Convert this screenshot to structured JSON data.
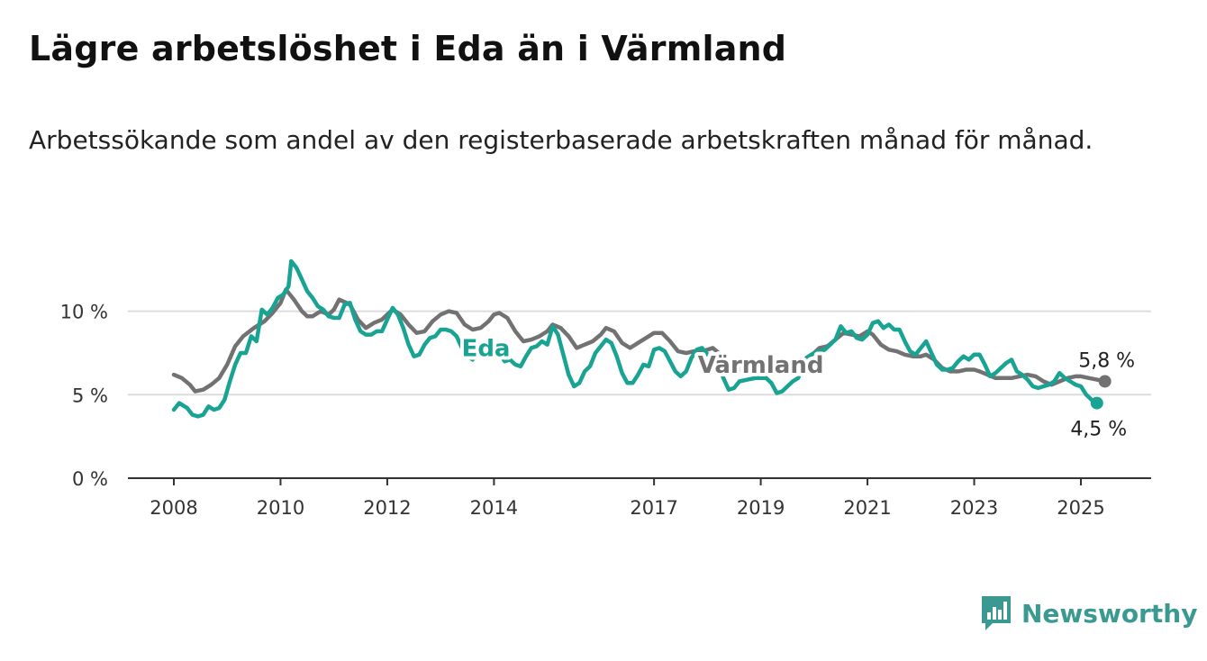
{
  "title": "Lägre arbetslöshet i Eda än i Värmland",
  "subtitle": "Arbetssökande som andel av den registerbaserade arbetskraften månad för månad.",
  "brand": {
    "name": "Newsworthy",
    "color": "#3a9a92",
    "icon": "chart-bars-icon"
  },
  "chart_data": {
    "type": "line",
    "title": "Lägre arbetslöshet i Eda än i Värmland",
    "subtitle": "Arbetssökande som andel av den registerbaserade arbetskraften månad för månad.",
    "x_ticks": [
      "2008",
      "2010",
      "2012",
      "2014",
      "2017",
      "2019",
      "2021",
      "2023",
      "2025"
    ],
    "y_ticks": [
      {
        "value": 0,
        "label": "0 %"
      },
      {
        "value": 5,
        "label": "5 %"
      },
      {
        "value": 10,
        "label": "10 %"
      }
    ],
    "xlim": [
      2007.2,
      2026.3
    ],
    "ylim": [
      0,
      13
    ],
    "grid": "horizontal",
    "legend": "none",
    "series": [
      {
        "name": "Värmland",
        "color": "#727272",
        "end_label": "5,8 %",
        "points": [
          [
            2008.0,
            6.2
          ],
          [
            2008.15,
            6.0
          ],
          [
            2008.3,
            5.6
          ],
          [
            2008.4,
            5.2
          ],
          [
            2008.55,
            5.3
          ],
          [
            2008.7,
            5.6
          ],
          [
            2008.85,
            6.0
          ],
          [
            2009.0,
            6.8
          ],
          [
            2009.15,
            7.9
          ],
          [
            2009.3,
            8.5
          ],
          [
            2009.5,
            9.0
          ],
          [
            2009.7,
            9.4
          ],
          [
            2009.85,
            9.9
          ],
          [
            2010.0,
            10.5
          ],
          [
            2010.1,
            11.3
          ],
          [
            2010.25,
            10.7
          ],
          [
            2010.4,
            10.0
          ],
          [
            2010.5,
            9.7
          ],
          [
            2010.6,
            9.7
          ],
          [
            2010.75,
            10.0
          ],
          [
            2010.9,
            9.8
          ],
          [
            2011.0,
            10.1
          ],
          [
            2011.1,
            10.7
          ],
          [
            2011.3,
            10.4
          ],
          [
            2011.45,
            9.5
          ],
          [
            2011.6,
            9.0
          ],
          [
            2011.75,
            9.3
          ],
          [
            2011.9,
            9.5
          ],
          [
            2012.0,
            9.8
          ],
          [
            2012.1,
            10.1
          ],
          [
            2012.25,
            9.8
          ],
          [
            2012.4,
            9.2
          ],
          [
            2012.55,
            8.7
          ],
          [
            2012.7,
            8.8
          ],
          [
            2012.85,
            9.4
          ],
          [
            2013.0,
            9.8
          ],
          [
            2013.15,
            10.0
          ],
          [
            2013.3,
            9.9
          ],
          [
            2013.45,
            9.2
          ],
          [
            2013.6,
            8.9
          ],
          [
            2013.75,
            9.0
          ],
          [
            2013.9,
            9.4
          ],
          [
            2014.0,
            9.8
          ],
          [
            2014.1,
            9.9
          ],
          [
            2014.25,
            9.6
          ],
          [
            2014.4,
            8.8
          ],
          [
            2014.55,
            8.2
          ],
          [
            2014.7,
            8.3
          ],
          [
            2014.85,
            8.5
          ],
          [
            2015.0,
            8.8
          ],
          [
            2015.1,
            9.2
          ],
          [
            2015.25,
            9.0
          ],
          [
            2015.4,
            8.5
          ],
          [
            2015.55,
            7.8
          ],
          [
            2015.7,
            8.0
          ],
          [
            2015.85,
            8.2
          ],
          [
            2016.0,
            8.6
          ],
          [
            2016.1,
            9.0
          ],
          [
            2016.25,
            8.8
          ],
          [
            2016.4,
            8.1
          ],
          [
            2016.55,
            7.8
          ],
          [
            2016.7,
            8.1
          ],
          [
            2016.85,
            8.4
          ],
          [
            2017.0,
            8.7
          ],
          [
            2017.15,
            8.7
          ],
          [
            2017.3,
            8.2
          ],
          [
            2017.45,
            7.6
          ],
          [
            2017.6,
            7.5
          ],
          [
            2017.75,
            7.6
          ],
          [
            2017.9,
            7.6
          ],
          [
            2018.0,
            7.7
          ],
          [
            2018.1,
            7.8
          ],
          [
            2018.25,
            7.4
          ],
          [
            2018.4,
            6.8
          ],
          [
            2018.55,
            6.5
          ],
          [
            2018.7,
            6.5
          ],
          [
            2018.85,
            6.7
          ],
          [
            2019.0,
            6.9
          ],
          [
            2019.15,
            7.1
          ],
          [
            2019.3,
            6.9
          ],
          [
            2019.45,
            6.6
          ],
          [
            2019.6,
            6.6
          ],
          [
            2019.75,
            6.9
          ],
          [
            2019.9,
            7.3
          ],
          [
            2020.0,
            7.5
          ],
          [
            2020.1,
            7.8
          ],
          [
            2020.25,
            7.9
          ],
          [
            2020.4,
            8.3
          ],
          [
            2020.55,
            8.7
          ],
          [
            2020.7,
            8.6
          ],
          [
            2020.85,
            8.5
          ],
          [
            2021.0,
            8.8
          ],
          [
            2021.1,
            8.6
          ],
          [
            2021.25,
            8.0
          ],
          [
            2021.4,
            7.7
          ],
          [
            2021.55,
            7.6
          ],
          [
            2021.7,
            7.4
          ],
          [
            2021.85,
            7.3
          ],
          [
            2022.0,
            7.3
          ],
          [
            2022.1,
            7.4
          ],
          [
            2022.25,
            7.1
          ],
          [
            2022.4,
            6.6
          ],
          [
            2022.55,
            6.4
          ],
          [
            2022.7,
            6.4
          ],
          [
            2022.85,
            6.5
          ],
          [
            2023.0,
            6.5
          ],
          [
            2023.1,
            6.4
          ],
          [
            2023.25,
            6.2
          ],
          [
            2023.4,
            6.0
          ],
          [
            2023.55,
            6.0
          ],
          [
            2023.7,
            6.0
          ],
          [
            2023.85,
            6.1
          ],
          [
            2024.0,
            6.2
          ],
          [
            2024.15,
            6.1
          ],
          [
            2024.3,
            5.8
          ],
          [
            2024.45,
            5.6
          ],
          [
            2024.6,
            5.8
          ],
          [
            2024.75,
            6.0
          ],
          [
            2024.9,
            6.1
          ],
          [
            2025.0,
            6.1
          ],
          [
            2025.15,
            6.0
          ],
          [
            2025.3,
            5.9
          ],
          [
            2025.45,
            5.8
          ]
        ]
      },
      {
        "name": "Eda",
        "color": "#19a393",
        "end_label": "4,5 %",
        "points": [
          [
            2008.0,
            4.1
          ],
          [
            2008.1,
            4.5
          ],
          [
            2008.25,
            4.2
          ],
          [
            2008.35,
            3.8
          ],
          [
            2008.45,
            3.7
          ],
          [
            2008.55,
            3.8
          ],
          [
            2008.65,
            4.3
          ],
          [
            2008.75,
            4.1
          ],
          [
            2008.85,
            4.2
          ],
          [
            2008.95,
            4.7
          ],
          [
            2009.05,
            5.8
          ],
          [
            2009.15,
            6.8
          ],
          [
            2009.25,
            7.5
          ],
          [
            2009.35,
            7.5
          ],
          [
            2009.45,
            8.5
          ],
          [
            2009.55,
            8.2
          ],
          [
            2009.65,
            10.1
          ],
          [
            2009.75,
            9.8
          ],
          [
            2009.85,
            10.2
          ],
          [
            2009.95,
            10.8
          ],
          [
            2010.05,
            11.0
          ],
          [
            2010.15,
            11.5
          ],
          [
            2010.2,
            13.0
          ],
          [
            2010.3,
            12.6
          ],
          [
            2010.4,
            11.9
          ],
          [
            2010.5,
            11.2
          ],
          [
            2010.6,
            10.8
          ],
          [
            2010.7,
            10.3
          ],
          [
            2010.8,
            10.1
          ],
          [
            2010.9,
            9.7
          ],
          [
            2011.0,
            9.6
          ],
          [
            2011.1,
            9.6
          ],
          [
            2011.2,
            10.4
          ],
          [
            2011.3,
            10.5
          ],
          [
            2011.4,
            9.5
          ],
          [
            2011.5,
            8.8
          ],
          [
            2011.6,
            8.6
          ],
          [
            2011.7,
            8.6
          ],
          [
            2011.8,
            8.8
          ],
          [
            2011.9,
            8.8
          ],
          [
            2012.0,
            9.5
          ],
          [
            2012.1,
            10.2
          ],
          [
            2012.2,
            9.8
          ],
          [
            2012.3,
            9.0
          ],
          [
            2012.4,
            8.0
          ],
          [
            2012.5,
            7.3
          ],
          [
            2012.6,
            7.4
          ],
          [
            2012.7,
            8.0
          ],
          [
            2012.8,
            8.4
          ],
          [
            2012.9,
            8.5
          ],
          [
            2013.0,
            8.9
          ],
          [
            2013.1,
            8.9
          ],
          [
            2013.2,
            8.8
          ],
          [
            2013.3,
            8.5
          ],
          [
            2013.4,
            7.8
          ],
          [
            2013.5,
            7.3
          ],
          [
            2013.6,
            7.1
          ],
          [
            2013.7,
            7.5
          ],
          [
            2013.85,
            7.3
          ],
          [
            2014.0,
            7.8
          ],
          [
            2014.1,
            7.5
          ],
          [
            2014.2,
            7.0
          ],
          [
            2014.3,
            7.1
          ],
          [
            2014.4,
            6.8
          ],
          [
            2014.5,
            6.7
          ],
          [
            2014.6,
            7.3
          ],
          [
            2014.7,
            7.8
          ],
          [
            2014.8,
            7.9
          ],
          [
            2014.9,
            8.2
          ],
          [
            2015.0,
            8.0
          ],
          [
            2015.1,
            9.1
          ],
          [
            2015.2,
            8.6
          ],
          [
            2015.3,
            7.4
          ],
          [
            2015.4,
            6.2
          ],
          [
            2015.5,
            5.5
          ],
          [
            2015.6,
            5.7
          ],
          [
            2015.7,
            6.4
          ],
          [
            2015.8,
            6.7
          ],
          [
            2015.9,
            7.5
          ],
          [
            2016.0,
            7.9
          ],
          [
            2016.1,
            8.3
          ],
          [
            2016.2,
            8.1
          ],
          [
            2016.3,
            7.3
          ],
          [
            2016.4,
            6.3
          ],
          [
            2016.5,
            5.7
          ],
          [
            2016.6,
            5.7
          ],
          [
            2016.7,
            6.2
          ],
          [
            2016.8,
            6.8
          ],
          [
            2016.9,
            6.7
          ],
          [
            2017.0,
            7.7
          ],
          [
            2017.1,
            7.8
          ],
          [
            2017.2,
            7.6
          ],
          [
            2017.3,
            7.0
          ],
          [
            2017.4,
            6.4
          ],
          [
            2017.5,
            6.1
          ],
          [
            2017.6,
            6.4
          ],
          [
            2017.7,
            7.2
          ],
          [
            2017.8,
            7.7
          ],
          [
            2017.9,
            7.8
          ],
          [
            2018.0,
            7.4
          ],
          [
            2018.1,
            7.4
          ],
          [
            2018.2,
            6.8
          ],
          [
            2018.3,
            6.0
          ],
          [
            2018.4,
            5.3
          ],
          [
            2018.5,
            5.4
          ],
          [
            2018.6,
            5.8
          ],
          [
            2018.75,
            5.9
          ],
          [
            2018.9,
            6.0
          ],
          [
            2019.0,
            6.0
          ],
          [
            2019.1,
            6.0
          ],
          [
            2019.2,
            5.7
          ],
          [
            2019.3,
            5.1
          ],
          [
            2019.4,
            5.2
          ],
          [
            2019.5,
            5.5
          ],
          [
            2019.6,
            5.8
          ],
          [
            2019.7,
            6.0
          ],
          [
            2019.85,
            7.2
          ],
          [
            2020.0,
            7.5
          ],
          [
            2020.1,
            7.6
          ],
          [
            2020.2,
            7.7
          ],
          [
            2020.3,
            8.0
          ],
          [
            2020.4,
            8.3
          ],
          [
            2020.5,
            9.1
          ],
          [
            2020.6,
            8.7
          ],
          [
            2020.7,
            8.8
          ],
          [
            2020.8,
            8.4
          ],
          [
            2020.9,
            8.3
          ],
          [
            2021.0,
            8.6
          ],
          [
            2021.1,
            9.3
          ],
          [
            2021.2,
            9.4
          ],
          [
            2021.3,
            9.0
          ],
          [
            2021.4,
            9.2
          ],
          [
            2021.5,
            8.9
          ],
          [
            2021.6,
            8.9
          ],
          [
            2021.7,
            8.2
          ],
          [
            2021.8,
            7.6
          ],
          [
            2021.9,
            7.4
          ],
          [
            2022.0,
            7.8
          ],
          [
            2022.1,
            8.2
          ],
          [
            2022.2,
            7.5
          ],
          [
            2022.3,
            6.8
          ],
          [
            2022.4,
            6.5
          ],
          [
            2022.5,
            6.5
          ],
          [
            2022.6,
            6.6
          ],
          [
            2022.7,
            7.0
          ],
          [
            2022.8,
            7.3
          ],
          [
            2022.9,
            7.1
          ],
          [
            2023.0,
            7.4
          ],
          [
            2023.1,
            7.4
          ],
          [
            2023.2,
            6.8
          ],
          [
            2023.3,
            6.1
          ],
          [
            2023.4,
            6.3
          ],
          [
            2023.5,
            6.6
          ],
          [
            2023.6,
            6.9
          ],
          [
            2023.7,
            7.1
          ],
          [
            2023.8,
            6.4
          ],
          [
            2023.9,
            6.2
          ],
          [
            2024.0,
            5.9
          ],
          [
            2024.1,
            5.5
          ],
          [
            2024.2,
            5.4
          ],
          [
            2024.3,
            5.5
          ],
          [
            2024.4,
            5.6
          ],
          [
            2024.5,
            5.8
          ],
          [
            2024.6,
            6.3
          ],
          [
            2024.7,
            6.0
          ],
          [
            2024.8,
            5.8
          ],
          [
            2024.9,
            5.6
          ],
          [
            2025.0,
            5.5
          ],
          [
            2025.1,
            5.0
          ],
          [
            2025.2,
            4.7
          ],
          [
            2025.3,
            4.5
          ]
        ]
      }
    ],
    "annotations": [
      {
        "text": "Eda",
        "series": 1,
        "x": 2013.85,
        "y": 7.8
      },
      {
        "text": "Värmland",
        "series": 0,
        "x": 2019.0,
        "y": 6.8
      }
    ]
  }
}
